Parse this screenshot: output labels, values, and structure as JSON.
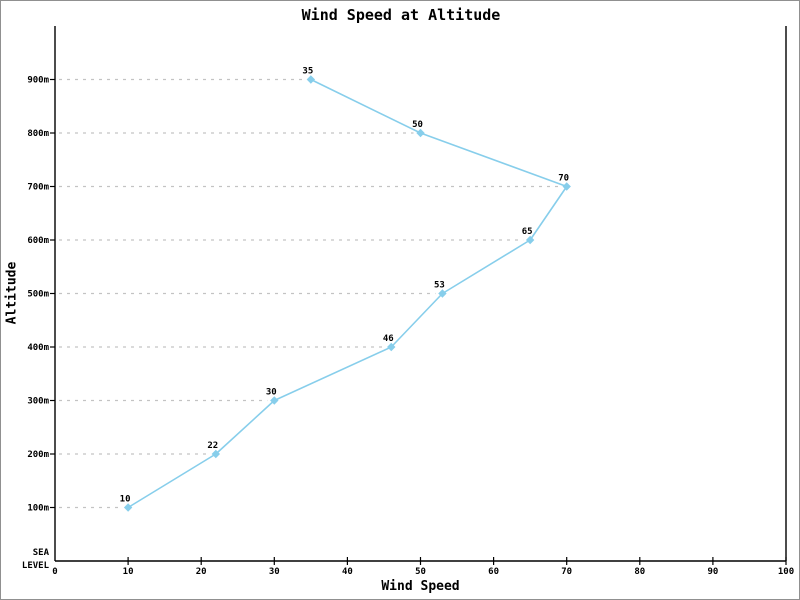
{
  "chart_data": {
    "type": "line",
    "title": "Wind Speed at Altitude",
    "xlabel": "Wind Speed",
    "ylabel": "Altitude",
    "sea_level_label": [
      "SEA",
      "LEVEL"
    ],
    "xlim": [
      0,
      100
    ],
    "x_ticks": [
      0,
      10,
      20,
      30,
      40,
      50,
      60,
      70,
      80,
      90,
      100
    ],
    "ylim_m": [
      0,
      1000
    ],
    "y_ticks_m": [
      100,
      200,
      300,
      400,
      500,
      600,
      700,
      800,
      900
    ],
    "y_tick_suffix": "m",
    "points": [
      {
        "altitude_m": 100,
        "wind_speed": 10
      },
      {
        "altitude_m": 200,
        "wind_speed": 22
      },
      {
        "altitude_m": 300,
        "wind_speed": 30
      },
      {
        "altitude_m": 400,
        "wind_speed": 46
      },
      {
        "altitude_m": 500,
        "wind_speed": 53
      },
      {
        "altitude_m": 600,
        "wind_speed": 65
      },
      {
        "altitude_m": 700,
        "wind_speed": 70
      },
      {
        "altitude_m": 800,
        "wind_speed": 50
      },
      {
        "altitude_m": 900,
        "wind_speed": 35
      }
    ],
    "legend": null,
    "grid": "dashed horizontal leader lines from y-axis to each data point",
    "marker_shape": "diamond",
    "colors": {
      "line": "#87CEEB",
      "marker": "#87CEEB",
      "gridline": "#C3C3C3",
      "axis": "#000000",
      "text": "#000000",
      "border": "#909090",
      "background": "#FFFFFF"
    }
  }
}
